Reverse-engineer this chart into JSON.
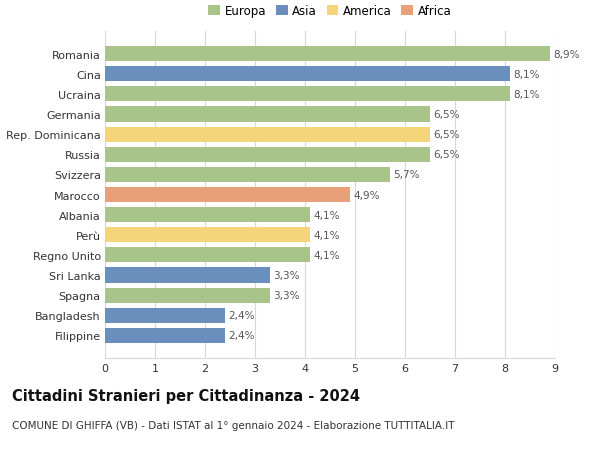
{
  "categories": [
    "Filippine",
    "Bangladesh",
    "Spagna",
    "Sri Lanka",
    "Regno Unito",
    "Perù",
    "Albania",
    "Marocco",
    "Svizzera",
    "Russia",
    "Rep. Dominicana",
    "Germania",
    "Ucraina",
    "Cina",
    "Romania"
  ],
  "values": [
    2.4,
    2.4,
    3.3,
    3.3,
    4.1,
    4.1,
    4.1,
    4.9,
    5.7,
    6.5,
    6.5,
    6.5,
    8.1,
    8.1,
    8.9
  ],
  "continents": [
    "Asia",
    "Asia",
    "Europa",
    "Asia",
    "Europa",
    "America",
    "Europa",
    "Africa",
    "Europa",
    "Europa",
    "America",
    "Europa",
    "Europa",
    "Asia",
    "Europa"
  ],
  "labels": [
    "2,4%",
    "2,4%",
    "3,3%",
    "3,3%",
    "4,1%",
    "4,1%",
    "4,1%",
    "4,9%",
    "5,7%",
    "6,5%",
    "6,5%",
    "6,5%",
    "8,1%",
    "8,1%",
    "8,9%"
  ],
  "colors": {
    "Europa": "#a8c48a",
    "Asia": "#6b8fbd",
    "America": "#f5d57a",
    "Africa": "#e8a07a"
  },
  "legend_order": [
    "Europa",
    "Asia",
    "America",
    "Africa"
  ],
  "title": "Cittadini Stranieri per Cittadinanza - 2024",
  "subtitle": "COMUNE DI GHIFFA (VB) - Dati ISTAT al 1° gennaio 2024 - Elaborazione TUTTITALIA.IT",
  "xlim": [
    0,
    9
  ],
  "xticks": [
    0,
    1,
    2,
    3,
    4,
    5,
    6,
    7,
    8,
    9
  ],
  "background_color": "#ffffff",
  "grid_color": "#d8d8d8",
  "title_fontsize": 10.5,
  "subtitle_fontsize": 7.5,
  "label_fontsize": 7.5,
  "tick_fontsize": 8,
  "legend_fontsize": 8.5
}
